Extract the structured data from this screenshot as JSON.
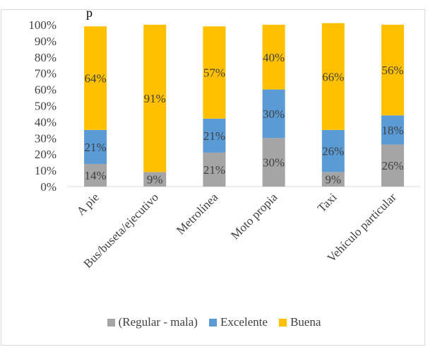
{
  "top_text": "p",
  "chart_data": {
    "type": "bar",
    "stacked": true,
    "percent": true,
    "categories": [
      "A pie",
      "Bus/buseta/ejecutivo",
      "Metrolínea",
      "Moto propia",
      "Taxi",
      "Vehículo particular"
    ],
    "series": [
      {
        "name": "(Regular - mala)",
        "color": "#a5a5a5",
        "values": [
          14,
          9,
          21,
          30,
          9,
          26
        ]
      },
      {
        "name": "Excelente",
        "color": "#5b9bd5",
        "values": [
          21,
          0,
          21,
          30,
          26,
          18
        ]
      },
      {
        "name": "Buena",
        "color": "#ffc000",
        "values": [
          64,
          91,
          57,
          40,
          66,
          56
        ]
      }
    ],
    "y_ticks": [
      "0%",
      "10%",
      "20%",
      "30%",
      "40%",
      "50%",
      "60%",
      "70%",
      "80%",
      "90%",
      "100%"
    ],
    "ylim": [
      0,
      100
    ],
    "grid": false,
    "legend_position": "bottom"
  }
}
